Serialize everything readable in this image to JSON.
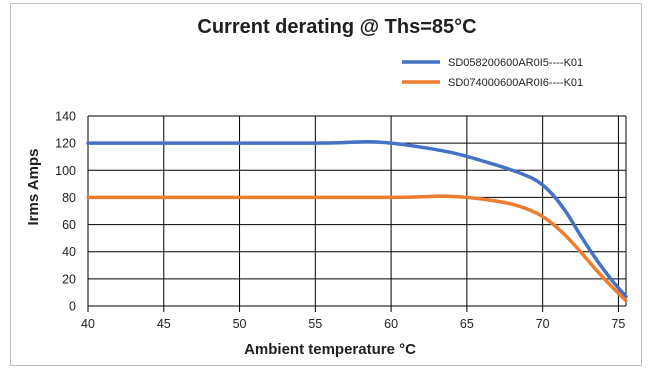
{
  "chart_data": {
    "type": "line",
    "title": "Current derating @ Ths=85°C",
    "xlabel": "Ambient temperature °C",
    "ylabel": "Irms Amps",
    "xlim": [
      40,
      75.5
    ],
    "ylim": [
      0,
      140
    ],
    "x_ticks": [
      "40",
      "45",
      "50",
      "55",
      "60",
      "65",
      "70",
      "75"
    ],
    "y_ticks": [
      "0",
      "20",
      "40",
      "60",
      "80",
      "100",
      "120",
      "140"
    ],
    "grid": true,
    "legend_position": "top-right",
    "series": [
      {
        "name": "SD058200600AR0I5----K01",
        "color": "#4472C4",
        "x": [
          40,
          45,
          50,
          55,
          57,
          58.5,
          60,
          62,
          64,
          66,
          68,
          69.5,
          70.5,
          71.5,
          72.5,
          73.5,
          74.5,
          75.5
        ],
        "y": [
          120,
          120,
          120,
          120,
          120.5,
          121,
          120,
          117,
          113,
          107,
          100,
          93,
          84,
          70,
          52,
          35,
          20,
          7
        ]
      },
      {
        "name": "SD074000600AR0I6----K01",
        "color": "#ED7D31",
        "x": [
          40,
          45,
          50,
          55,
          60,
          62,
          63.5,
          65,
          66.5,
          68,
          69.5,
          70.5,
          71.5,
          72.5,
          73.5,
          74.5,
          75.5
        ],
        "y": [
          80,
          80,
          80,
          80,
          80,
          80.5,
          81,
          80,
          78,
          75,
          69,
          62,
          52,
          40,
          27,
          15,
          4
        ]
      }
    ]
  }
}
